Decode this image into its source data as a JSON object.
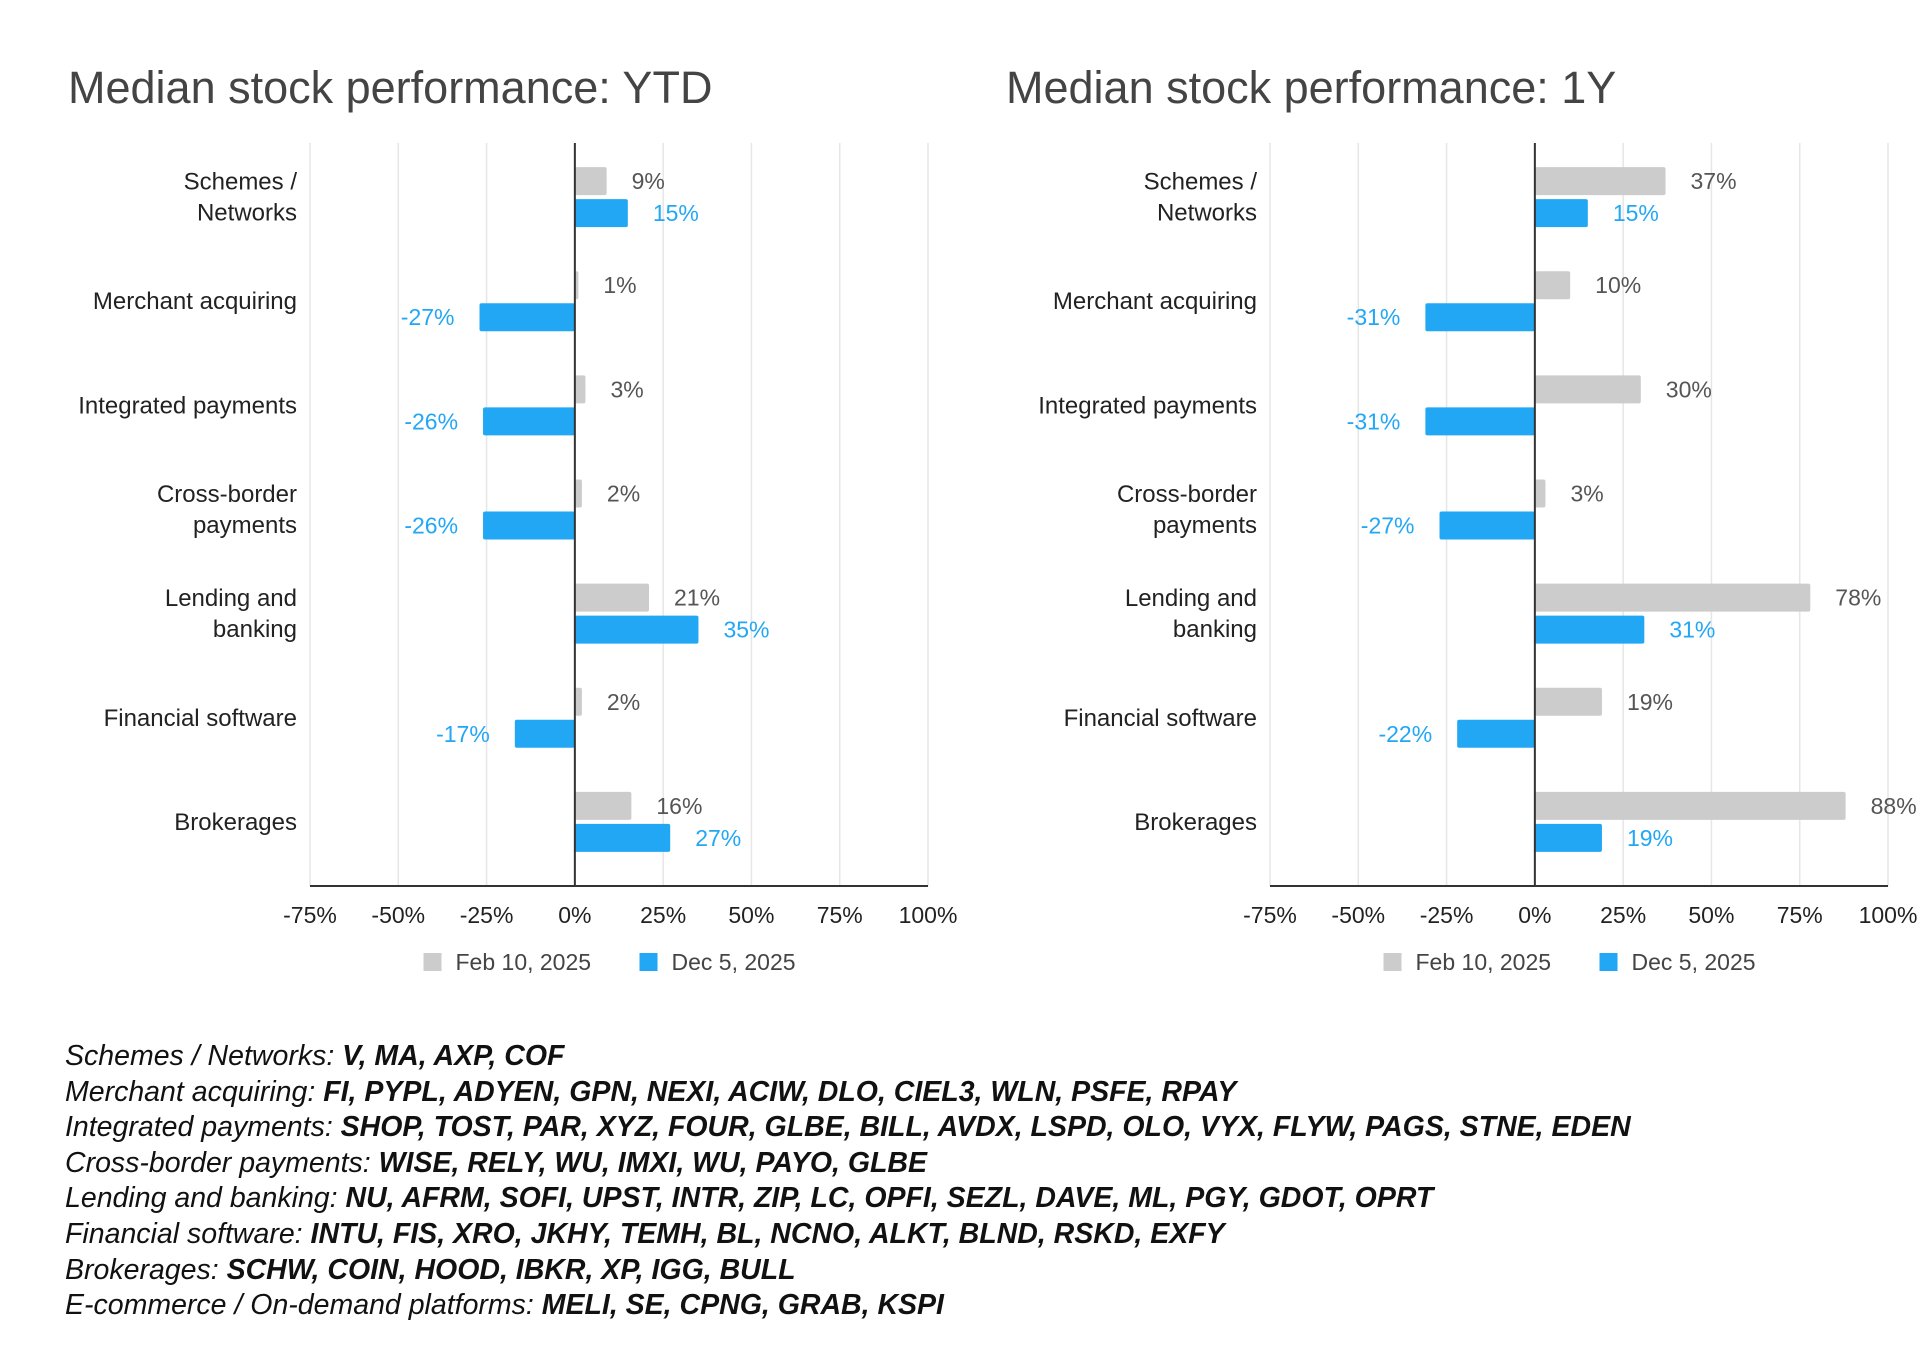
{
  "charts": {
    "ytd": {
      "title": "Median stock performance: YTD"
    },
    "oney": {
      "title": "Median stock performance: 1Y"
    }
  },
  "colors": {
    "feb": "#cccccc",
    "dec": "#22a7f5",
    "feb_label": "#555555",
    "dec_label": "#22a7f5"
  },
  "chart_data": [
    {
      "type": "bar",
      "orientation": "horizontal",
      "title": "Median stock performance: YTD",
      "categories": [
        [
          "Schemes /",
          "Networks"
        ],
        [
          "Merchant acquiring"
        ],
        [
          "Integrated payments"
        ],
        [
          "Cross-border",
          "payments"
        ],
        [
          "Lending and",
          "banking"
        ],
        [
          "Financial software"
        ],
        [
          "Brokerages"
        ]
      ],
      "series": [
        {
          "name": "Feb 10, 2025",
          "values": [
            9,
            1,
            3,
            2,
            21,
            2,
            16
          ],
          "labels": [
            "9%",
            "1%",
            "3%",
            "2%",
            "21%",
            "2%",
            "16%"
          ]
        },
        {
          "name": "Dec 5, 2025",
          "values": [
            15,
            -27,
            -26,
            -26,
            35,
            -17,
            27
          ],
          "labels": [
            "15%",
            "-27%",
            "-26%",
            "-26%",
            "35%",
            "-17%",
            "27%"
          ]
        }
      ],
      "xlim": [
        -75,
        100
      ],
      "xticks": [
        -75,
        -50,
        -25,
        0,
        25,
        50,
        75,
        100
      ],
      "xtick_labels": [
        "-75%",
        "-50%",
        "-25%",
        "0%",
        "25%",
        "50%",
        "75%",
        "100%"
      ],
      "legend": [
        "Feb 10, 2025",
        "Dec 5, 2025"
      ],
      "legend_position": "bottom",
      "grid": true
    },
    {
      "type": "bar",
      "orientation": "horizontal",
      "title": "Median stock performance: 1Y",
      "categories": [
        [
          "Schemes /",
          "Networks"
        ],
        [
          "Merchant acquiring"
        ],
        [
          "Integrated payments"
        ],
        [
          "Cross-border",
          "payments"
        ],
        [
          "Lending and",
          "banking"
        ],
        [
          "Financial software"
        ],
        [
          "Brokerages"
        ]
      ],
      "series": [
        {
          "name": "Feb 10, 2025",
          "values": [
            37,
            10,
            30,
            3,
            78,
            19,
            88
          ],
          "labels": [
            "37%",
            "10%",
            "30%",
            "3%",
            "78%",
            "19%",
            "88%"
          ]
        },
        {
          "name": "Dec 5, 2025",
          "values": [
            15,
            -31,
            -31,
            -27,
            31,
            -22,
            19
          ],
          "labels": [
            "15%",
            "-31%",
            "-31%",
            "-27%",
            "31%",
            "-22%",
            "19%"
          ]
        }
      ],
      "xlim": [
        -75,
        100
      ],
      "xticks": [
        -75,
        -50,
        -25,
        0,
        25,
        50,
        75,
        100
      ],
      "xtick_labels": [
        "-75%",
        "-50%",
        "-25%",
        "0%",
        "25%",
        "50%",
        "75%",
        "100%"
      ],
      "legend": [
        "Feb 10, 2025",
        "Dec 5, 2025"
      ],
      "legend_position": "bottom",
      "grid": true
    }
  ],
  "notes": [
    {
      "label": "Schemes / Networks: ",
      "tickers": "V, MA, AXP, COF"
    },
    {
      "label": "Merchant acquiring: ",
      "tickers": "FI, PYPL, ADYEN, GPN, NEXI, ACIW, DLO, CIEL3, WLN, PSFE, RPAY"
    },
    {
      "label": "Integrated payments: ",
      "tickers": "SHOP, TOST, PAR, XYZ, FOUR, GLBE, BILL, AVDX, LSPD, OLO, VYX, FLYW, PAGS, STNE, EDEN"
    },
    {
      "label": "Cross-border payments: ",
      "tickers": "WISE, RELY, WU, IMXI, WU, PAYO, GLBE"
    },
    {
      "label": "Lending and banking: ",
      "tickers": "NU, AFRM, SOFI, UPST, INTR, ZIP, LC, OPFI, SEZL, DAVE, ML, PGY, GDOT, OPRT"
    },
    {
      "label": "Financial software: ",
      "tickers": "INTU, FIS, XRO, JKHY, TEMH, BL, NCNO, ALKT, BLND, RSKD, EXFY"
    },
    {
      "label": "Brokerages: ",
      "tickers": "SCHW, COIN, HOOD, IBKR, XP, IGG, BULL"
    },
    {
      "label": "E-commerce / On-demand platforms: ",
      "tickers": "MELI, SE, CPNG, GRAB, KSPI"
    }
  ]
}
